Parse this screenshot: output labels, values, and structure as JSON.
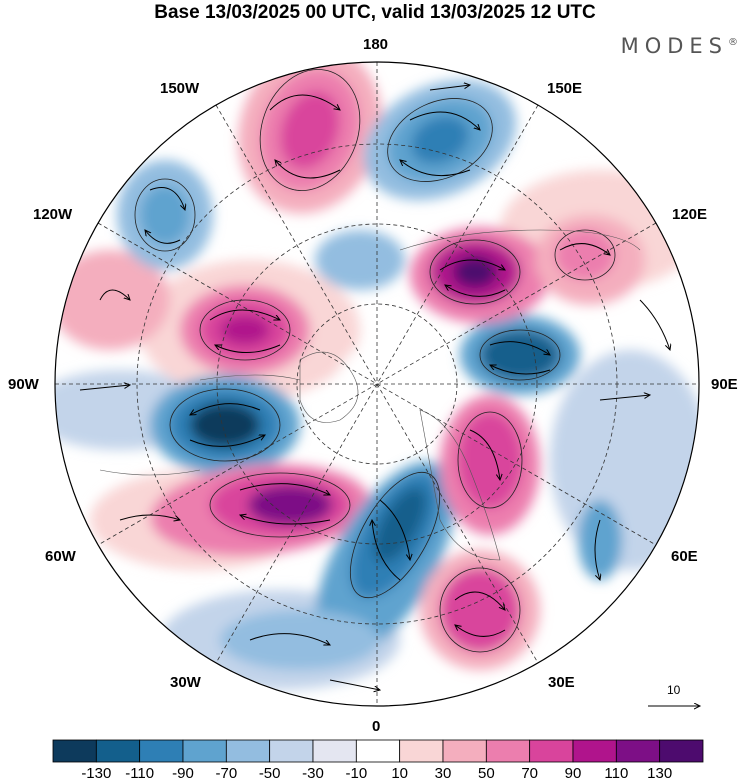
{
  "title": "Base 13/03/2025 00 UTC, valid 13/03/2025 12 UTC",
  "brand": "MODES",
  "brand_mark": "®",
  "longitude_labels": {
    "lon_180": "180",
    "lon_150w": "150W",
    "lon_120w": "120W",
    "lon_90w": "90W",
    "lon_60w": "60W",
    "lon_30w": "30W",
    "lon_0": "0",
    "lon_30e": "30E",
    "lon_60e": "60E",
    "lon_90e": "90E",
    "lon_120e": "120E",
    "lon_150e": "150E"
  },
  "reference_vector": "10",
  "colorbar": {
    "labels": [
      "-130",
      "-110",
      "-90",
      "-70",
      "-50",
      "-30",
      "-10",
      "10",
      "30",
      "50",
      "70",
      "90",
      "110",
      "130"
    ],
    "colors": [
      "#0d3a5c",
      "#135f8c",
      "#2e7fb5",
      "#5fa3cf",
      "#93bde0",
      "#c3d4ea",
      "#e4e6f1",
      "#ffffff",
      "#f9d6d6",
      "#f4aebe",
      "#ec7eae",
      "#d9449c",
      "#b0148c",
      "#7d0f86",
      "#4d0b6e"
    ]
  },
  "anomaly_colors": {
    "negative_strong": "#0d3a5c",
    "negative": "#2e7fb5",
    "negative_weak": "#93bde0",
    "positive_weak": "#f4aebe",
    "positive": "#d9449c",
    "positive_strong": "#7d0f86"
  }
}
